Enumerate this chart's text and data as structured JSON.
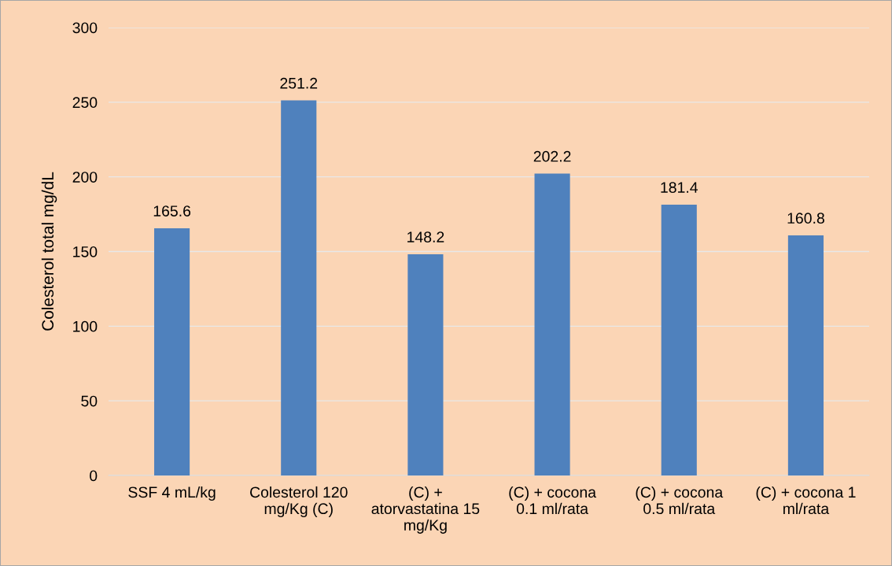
{
  "chart_data": {
    "type": "bar",
    "ylabel": "Colesterol total mg/dL",
    "categories": [
      "SSF 4 mL/kg",
      "Colesterol 120\nmg/Kg (C)",
      "(C) +\natorvastatina 15\nmg/Kg",
      "(C) + cocona\n0.1 ml/rata",
      "(C) + cocona\n0.5 ml/rata",
      "(C) + cocona 1\nml/rata"
    ],
    "values": [
      165.6,
      251.2,
      148.2,
      202.2,
      181.4,
      160.8
    ],
    "color": "#4f81bd",
    "ylim": [
      0,
      300
    ],
    "yticks": [
      0,
      50,
      100,
      150,
      200,
      250,
      300
    ],
    "grid": "y",
    "data_labels": true
  }
}
